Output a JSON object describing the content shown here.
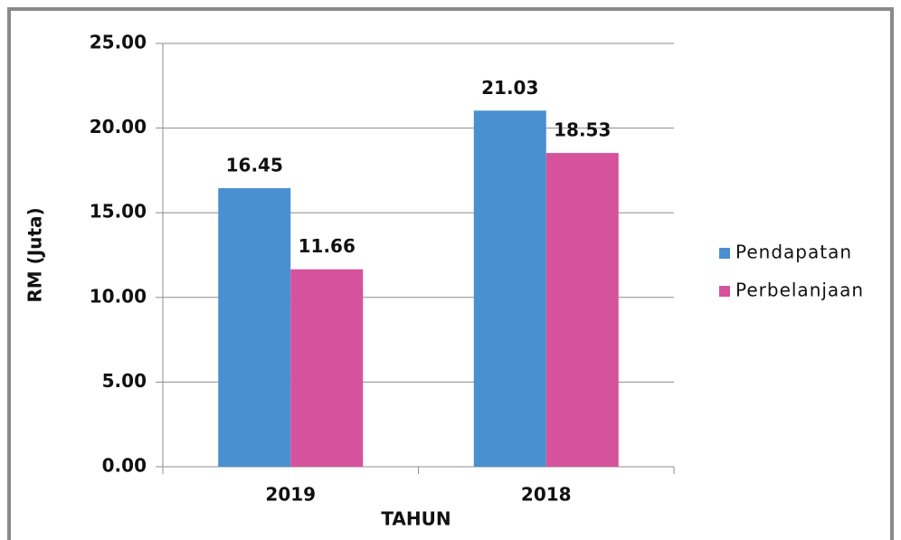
{
  "chart_data": {
    "type": "bar",
    "categories": [
      "2019",
      "2018"
    ],
    "series": [
      {
        "name": "Pendapatan",
        "color": "#4a8fd0",
        "values": [
          16.45,
          21.03
        ]
      },
      {
        "name": "Perbelanjaan",
        "color": "#d6529c",
        "values": [
          11.66,
          18.53
        ]
      }
    ],
    "x_label": "TAHUN",
    "y_label": "RM (Juta)",
    "ylim": [
      0,
      25
    ],
    "yticks": [
      {
        "value": 0,
        "label": "0.00"
      },
      {
        "value": 5,
        "label": "5.00"
      },
      {
        "value": 10,
        "label": "10.00"
      },
      {
        "value": 15,
        "label": "15.00"
      },
      {
        "value": 20,
        "label": "20.00"
      },
      {
        "value": 25,
        "label": "25.00"
      }
    ],
    "grid": true,
    "legend": "right"
  }
}
